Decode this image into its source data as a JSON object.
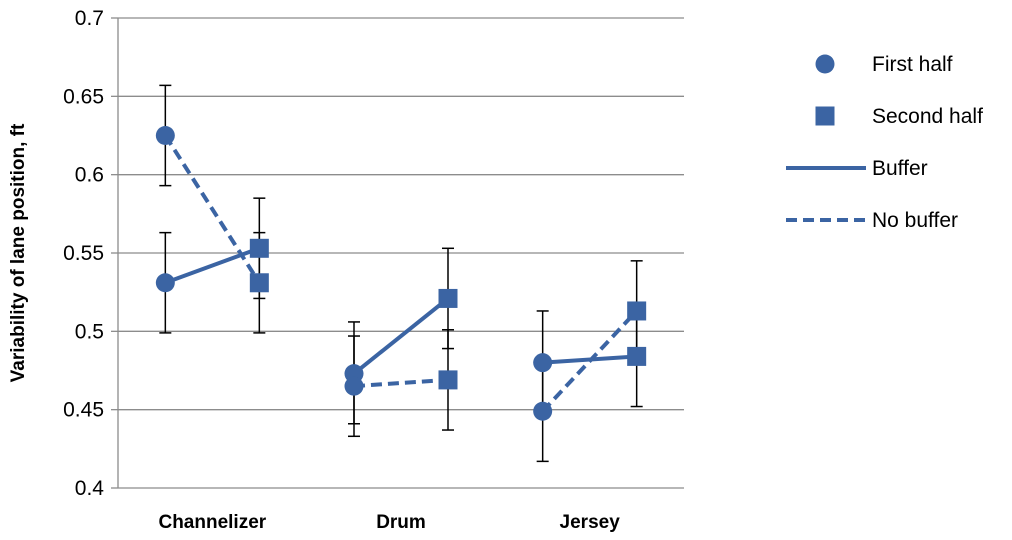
{
  "chart_data": {
    "type": "line",
    "ylabel": "Variability of lane position, ft",
    "xlabel": "",
    "ylim": [
      0.4,
      0.7
    ],
    "ytick_step": 0.05,
    "yticks": [
      "0.4",
      "0.45",
      "0.5",
      "0.55",
      "0.6",
      "0.65",
      "0.7"
    ],
    "grid": true,
    "legend_position": "right",
    "categories": [
      "Channelizer",
      "Drum",
      "Jersey"
    ],
    "halves": [
      "First half",
      "Second half"
    ],
    "series": [
      {
        "name": "Buffer",
        "line_style": "solid",
        "values": [
          {
            "category": "Channelizer",
            "first_half": 0.531,
            "second_half": 0.553
          },
          {
            "category": "Drum",
            "first_half": 0.473,
            "second_half": 0.521
          },
          {
            "category": "Jersey",
            "first_half": 0.48,
            "second_half": 0.484
          }
        ],
        "error": [
          {
            "first_half": [
              0.499,
              0.563
            ],
            "second_half": [
              0.521,
              0.585
            ]
          },
          {
            "first_half": [
              0.441,
              0.506
            ],
            "second_half": [
              0.489,
              0.553
            ]
          },
          {
            "first_half": [
              0.448,
              0.513
            ],
            "second_half": [
              0.452,
              0.516
            ]
          }
        ]
      },
      {
        "name": "No buffer",
        "line_style": "dashed",
        "values": [
          {
            "category": "Channelizer",
            "first_half": 0.625,
            "second_half": 0.531
          },
          {
            "category": "Drum",
            "first_half": 0.465,
            "second_half": 0.469
          },
          {
            "category": "Jersey",
            "first_half": 0.449,
            "second_half": 0.513
          }
        ],
        "error": [
          {
            "first_half": [
              0.593,
              0.657
            ],
            "second_half": [
              0.499,
              0.563
            ]
          },
          {
            "first_half": [
              0.433,
              0.497
            ],
            "second_half": [
              0.437,
              0.501
            ]
          },
          {
            "first_half": [
              0.417,
              0.481
            ],
            "second_half": [
              0.481,
              0.545
            ]
          }
        ]
      }
    ],
    "legend": [
      {
        "label": "First half",
        "symbol": "circle"
      },
      {
        "label": "Second half",
        "symbol": "square"
      },
      {
        "label": "Buffer",
        "symbol": "solid-line"
      },
      {
        "label": "No buffer",
        "symbol": "dashed-line"
      }
    ],
    "colors": {
      "series": "#3b64a3",
      "grid": "#8c8c8c",
      "axis": "#8c8c8c",
      "error_bar": "#000000"
    }
  }
}
